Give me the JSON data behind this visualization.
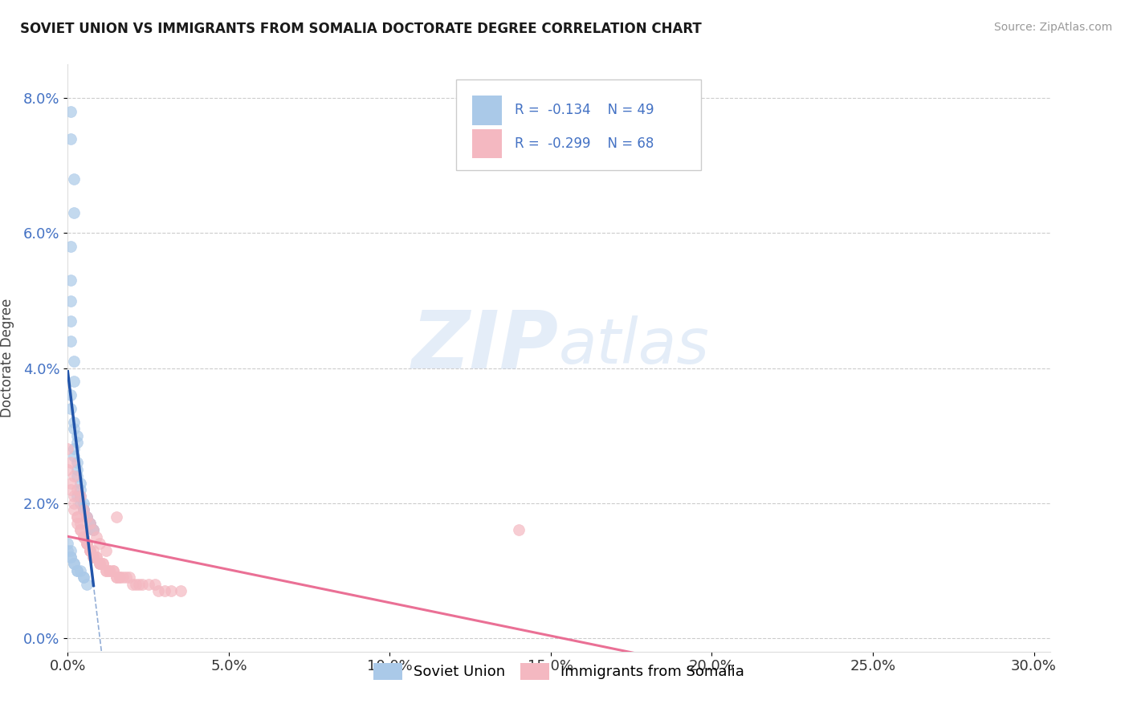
{
  "title": "SOVIET UNION VS IMMIGRANTS FROM SOMALIA DOCTORATE DEGREE CORRELATION CHART",
  "source": "Source: ZipAtlas.com",
  "ylabel": "Doctorate Degree",
  "xlabel_ticks": [
    "0.0%",
    "5.0%",
    "10.0%",
    "15.0%",
    "20.0%",
    "25.0%",
    "30.0%"
  ],
  "ylabel_ticks_right": [
    "8.0%",
    "6.0%",
    "4.0%",
    "2.0%",
    "0.0%"
  ],
  "xlim": [
    0.0,
    0.305
  ],
  "ylim": [
    -0.002,
    0.085
  ],
  "legend1_R": "-0.134",
  "legend1_N": "49",
  "legend2_R": "-0.299",
  "legend2_N": "68",
  "series1_color": "#aac9e8",
  "series2_color": "#f4b8c1",
  "series1_name": "Soviet Union",
  "series2_name": "Immigrants from Somalia",
  "watermark_zip": "ZIP",
  "watermark_atlas": "atlas",
  "background_color": "#ffffff",
  "grid_color": "#cccccc",
  "blue_scatter_x": [
    0.001,
    0.001,
    0.002,
    0.002,
    0.001,
    0.001,
    0.001,
    0.001,
    0.001,
    0.002,
    0.002,
    0.001,
    0.001,
    0.002,
    0.002,
    0.003,
    0.003,
    0.002,
    0.002,
    0.003,
    0.003,
    0.003,
    0.004,
    0.004,
    0.003,
    0.004,
    0.004,
    0.005,
    0.005,
    0.005,
    0.006,
    0.006,
    0.007,
    0.007,
    0.008,
    0.008,
    0.0,
    0.0,
    0.001,
    0.001,
    0.001,
    0.002,
    0.002,
    0.003,
    0.003,
    0.004,
    0.005,
    0.005,
    0.006
  ],
  "blue_scatter_y": [
    0.078,
    0.074,
    0.068,
    0.063,
    0.058,
    0.053,
    0.05,
    0.047,
    0.044,
    0.041,
    0.038,
    0.036,
    0.034,
    0.032,
    0.031,
    0.03,
    0.029,
    0.028,
    0.027,
    0.026,
    0.025,
    0.024,
    0.023,
    0.022,
    0.021,
    0.021,
    0.02,
    0.02,
    0.019,
    0.019,
    0.018,
    0.018,
    0.017,
    0.017,
    0.016,
    0.016,
    0.014,
    0.013,
    0.013,
    0.012,
    0.012,
    0.011,
    0.011,
    0.01,
    0.01,
    0.01,
    0.009,
    0.009,
    0.008
  ],
  "pink_scatter_x": [
    0.0,
    0.001,
    0.001,
    0.002,
    0.002,
    0.002,
    0.003,
    0.003,
    0.003,
    0.004,
    0.004,
    0.004,
    0.005,
    0.005,
    0.005,
    0.006,
    0.006,
    0.006,
    0.007,
    0.007,
    0.007,
    0.008,
    0.008,
    0.008,
    0.009,
    0.009,
    0.01,
    0.01,
    0.01,
    0.011,
    0.011,
    0.012,
    0.012,
    0.013,
    0.013,
    0.014,
    0.014,
    0.015,
    0.015,
    0.016,
    0.016,
    0.017,
    0.018,
    0.019,
    0.02,
    0.021,
    0.022,
    0.023,
    0.025,
    0.027,
    0.028,
    0.03,
    0.032,
    0.035,
    0.0,
    0.001,
    0.002,
    0.003,
    0.004,
    0.005,
    0.006,
    0.007,
    0.008,
    0.009,
    0.01,
    0.012,
    0.015,
    0.14
  ],
  "pink_scatter_y": [
    0.025,
    0.023,
    0.022,
    0.021,
    0.02,
    0.019,
    0.018,
    0.018,
    0.017,
    0.017,
    0.016,
    0.016,
    0.015,
    0.015,
    0.015,
    0.014,
    0.014,
    0.014,
    0.013,
    0.013,
    0.013,
    0.013,
    0.012,
    0.012,
    0.012,
    0.012,
    0.011,
    0.011,
    0.011,
    0.011,
    0.011,
    0.01,
    0.01,
    0.01,
    0.01,
    0.01,
    0.01,
    0.009,
    0.009,
    0.009,
    0.009,
    0.009,
    0.009,
    0.009,
    0.008,
    0.008,
    0.008,
    0.008,
    0.008,
    0.008,
    0.007,
    0.007,
    0.007,
    0.007,
    0.028,
    0.026,
    0.024,
    0.022,
    0.021,
    0.019,
    0.018,
    0.017,
    0.016,
    0.015,
    0.014,
    0.013,
    0.018,
    0.016
  ]
}
